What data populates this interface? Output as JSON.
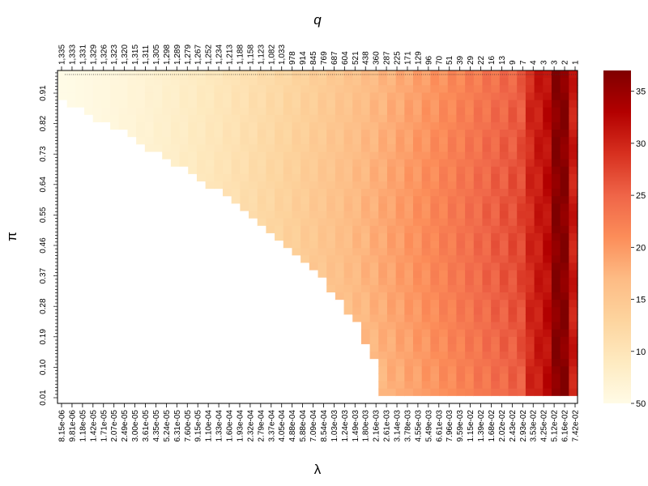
{
  "chart_data": {
    "type": "heatmap",
    "title": "",
    "xlabel": "λ",
    "ylabel": "π",
    "x2label": "q",
    "x_ticks": [
      "8.15e-06",
      "9.81e-06",
      "1.18e-05",
      "1.42e-05",
      "1.71e-05",
      "2.07e-05",
      "2.49e-05",
      "3.00e-05",
      "3.61e-05",
      "4.35e-05",
      "5.24e-05",
      "6.31e-05",
      "7.60e-05",
      "9.15e-05",
      "1.10e-04",
      "1.33e-04",
      "1.60e-04",
      "1.93e-04",
      "2.32e-04",
      "2.79e-04",
      "3.37e-04",
      "4.05e-04",
      "4.88e-04",
      "5.88e-04",
      "7.09e-04",
      "8.54e-04",
      "1.03e-03",
      "1.24e-03",
      "1.49e-03",
      "1.80e-03",
      "2.16e-03",
      "2.61e-03",
      "3.14e-03",
      "3.78e-03",
      "4.55e-03",
      "5.49e-03",
      "6.61e-03",
      "7.96e-03",
      "9.59e-03",
      "1.15e-02",
      "1.39e-02",
      "1.68e-02",
      "2.02e-02",
      "2.43e-02",
      "2.93e-02",
      "3.53e-02",
      "4.25e-02",
      "5.12e-02",
      "6.16e-02",
      "7.42e-02"
    ],
    "x2_ticks": [
      "1,335",
      "1,333",
      "1,331",
      "1,329",
      "1,326",
      "1,323",
      "1,320",
      "1,315",
      "1,311",
      "1,305",
      "1,298",
      "1,289",
      "1,279",
      "1,267",
      "1,252",
      "1,234",
      "1,213",
      "1,188",
      "1,158",
      "1,123",
      "1,082",
      "1,033",
      "978",
      "914",
      "845",
      "769",
      "687",
      "604",
      "521",
      "438",
      "360",
      "287",
      "225",
      "171",
      "129",
      "96",
      "70",
      "51",
      "39",
      "29",
      "22",
      "16",
      "13",
      "9",
      "7",
      "4",
      "3",
      "3",
      "2",
      "1"
    ],
    "y_ticks": [
      "0.01",
      "0.10",
      "0.19",
      "0.28",
      "0.37",
      "0.46",
      "0.55",
      "0.64",
      "0.73",
      "0.82",
      "0.91"
    ],
    "y_range": [
      0.0,
      1.0
    ],
    "colorbar": {
      "ticks": [
        "50",
        "10",
        "15",
        "20",
        "25",
        "30",
        "35"
      ],
      "range": [
        5,
        37
      ]
    },
    "colors": [
      "#fffbe6",
      "#feeac0",
      "#fdd49e",
      "#fdbb84",
      "#fc8d59",
      "#ef6548",
      "#d7301f",
      "#b30000",
      "#7f0000"
    ],
    "grid": false,
    "legend": "colorbar-right"
  }
}
